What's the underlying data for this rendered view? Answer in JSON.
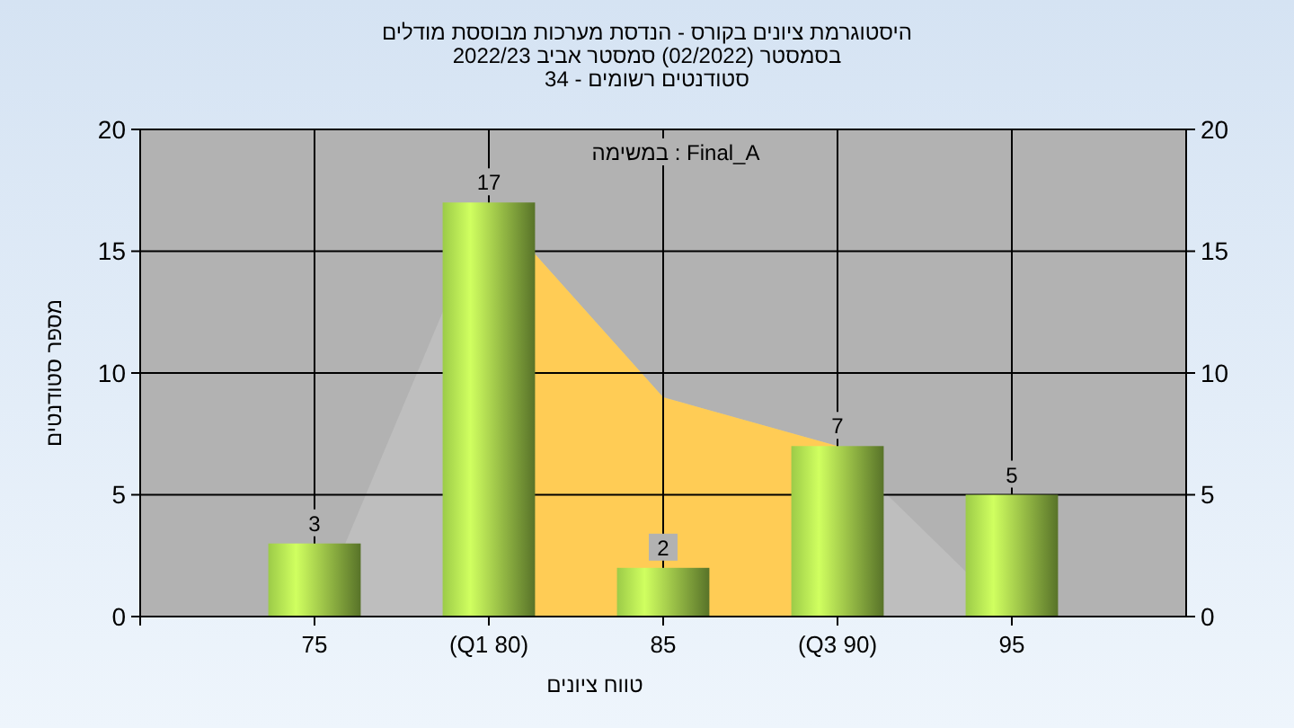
{
  "chart_data": {
    "type": "bar",
    "title": "היסטוגרמת ציונים בקורס - הנדסת מערכות מבוססת מודלים",
    "subtitle": "בסמסטר  (02/2022)  סמסטר אביב 2022/23\nסטודנטים רשומים - 34",
    "xlabel": "טווח ציונים",
    "ylabel": "מספר סטודנטים",
    "annotations": [
      "במשימה : Final_A"
    ],
    "categories": [
      "75",
      "(Q1 80)",
      "85",
      "(Q3 90)",
      "95"
    ],
    "series": [
      {
        "type": "area",
        "color": "#bebebe",
        "values": [
          0,
          17,
          9,
          7,
          0
        ]
      },
      {
        "type": "area",
        "color": "#ffcc55",
        "values": [
          null,
          17,
          9,
          7,
          null
        ]
      },
      {
        "color": "#9ccb48",
        "values": [
          3,
          17,
          2,
          7,
          5
        ],
        "value_labels": [
          "3",
          "17",
          "2",
          "7",
          "5"
        ]
      }
    ],
    "ylim": [
      0,
      20
    ],
    "yticks": [
      0,
      5,
      10,
      15,
      20
    ],
    "y2lim": [
      0,
      20
    ],
    "y2ticks": [
      0,
      5,
      10,
      15,
      20
    ],
    "grid": true
  }
}
